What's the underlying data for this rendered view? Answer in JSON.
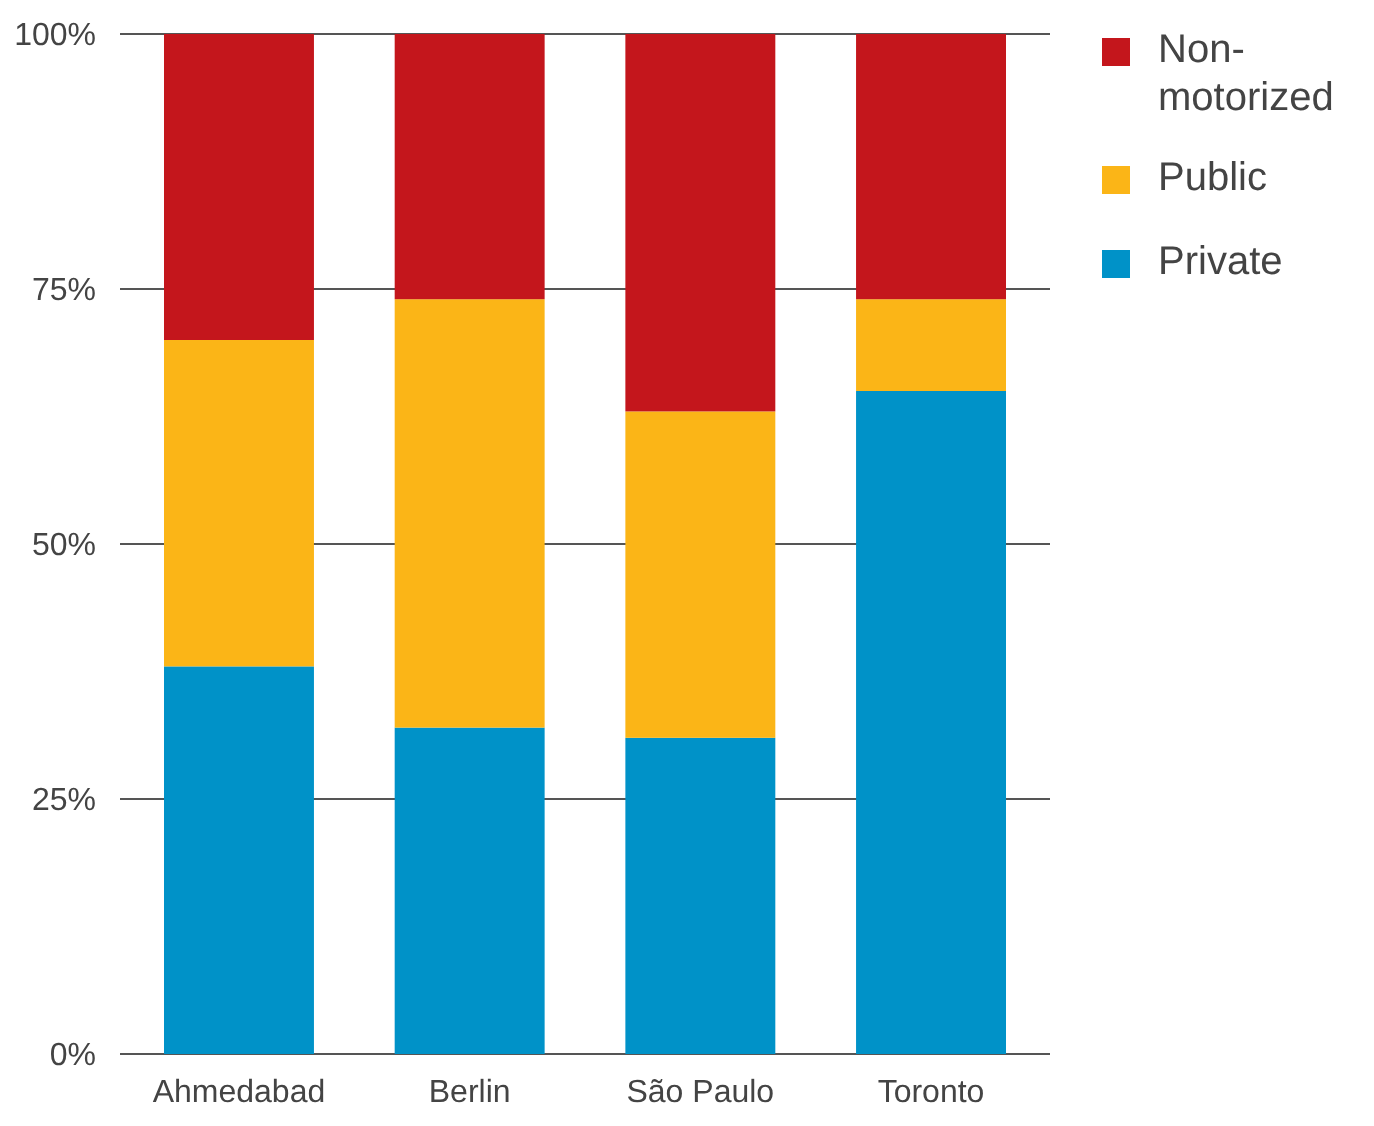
{
  "chart_data": {
    "type": "bar",
    "stacked": true,
    "categories": [
      "Ahmedabad",
      "Berlin",
      "São Paulo",
      "Toronto"
    ],
    "series": [
      {
        "name": "Private",
        "color": "#0092c8",
        "values": [
          38,
          32,
          31,
          65
        ]
      },
      {
        "name": "Public",
        "color": "#fbb517",
        "values": [
          32,
          42,
          32,
          9
        ]
      },
      {
        "name": "Non-motorized",
        "color": "#c4161c",
        "values": [
          30,
          26,
          37,
          26
        ]
      }
    ],
    "ylim": [
      0,
      100
    ],
    "yticks": [
      {
        "value": 0,
        "label": "0%"
      },
      {
        "value": 25,
        "label": "25%"
      },
      {
        "value": 50,
        "label": "50%"
      },
      {
        "value": 75,
        "label": "75%"
      },
      {
        "value": 100,
        "label": "100%"
      }
    ],
    "grid": "y",
    "legend": "top right"
  }
}
